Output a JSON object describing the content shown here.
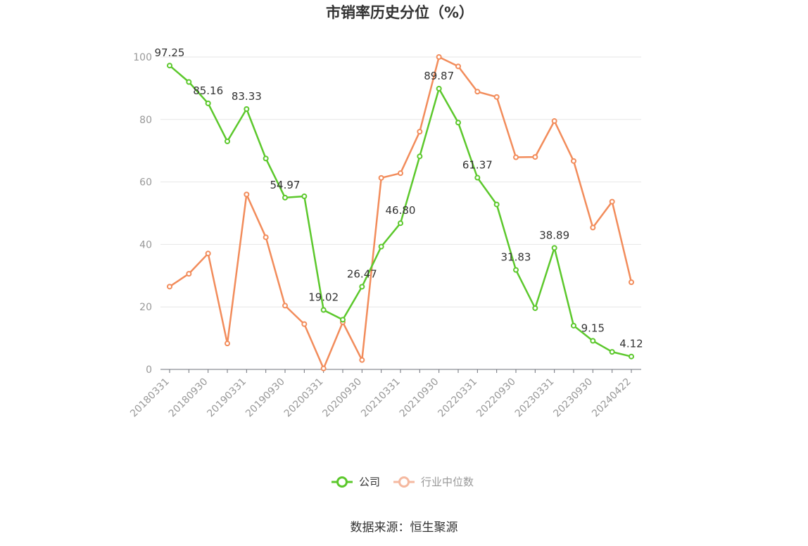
{
  "chart_data": {
    "type": "line",
    "title": "市销率历史分位（%）",
    "xlabel": "",
    "ylabel": "",
    "ylim": [
      0,
      100
    ],
    "yticks": [
      0,
      20,
      40,
      60,
      80,
      100
    ],
    "grid": true,
    "legend_position": "bottom",
    "x_tick_labels": [
      "20180331",
      "20180930",
      "20190331",
      "20190930",
      "20200331",
      "20200930",
      "20210331",
      "20210930",
      "20220331",
      "20220930",
      "20230331",
      "20230930",
      "20240422"
    ],
    "x": [
      "20180331",
      "20180630",
      "20180930",
      "20181231",
      "20190331",
      "20190630",
      "20190930",
      "20191231",
      "20200331",
      "20200630",
      "20200930",
      "20201231",
      "20210331",
      "20210630",
      "20210930",
      "20211231",
      "20220331",
      "20220630",
      "20220930",
      "20221231",
      "20230331",
      "20230630",
      "20230930",
      "20231231",
      "20240422"
    ],
    "series": [
      {
        "name": "公司",
        "color": "#5cc82c",
        "values": [
          97.25,
          92.0,
          85.16,
          73.0,
          83.33,
          67.5,
          54.97,
          55.4,
          19.02,
          15.9,
          26.47,
          39.3,
          46.8,
          68.2,
          89.87,
          79.0,
          61.37,
          52.8,
          31.83,
          19.6,
          38.89,
          14.0,
          9.15,
          5.6,
          4.12
        ],
        "labels": [
          "97.25",
          "",
          "85.16",
          "",
          "83.33",
          "",
          "54.97",
          "",
          "19.02",
          "",
          "26.47",
          "",
          "46.80",
          "",
          "89.87",
          "",
          "61.37",
          "",
          "31.83",
          "",
          "38.89",
          "",
          "9.15",
          "",
          "4.12"
        ]
      },
      {
        "name": "行业中位数",
        "color": "#f28c5b",
        "values": [
          26.5,
          30.6,
          37.1,
          8.3,
          56.0,
          42.3,
          20.4,
          14.5,
          0.3,
          15.1,
          3.0,
          61.3,
          62.8,
          76.1,
          100.0,
          97.0,
          88.9,
          87.2,
          67.9,
          68.0,
          79.5,
          66.7,
          45.4,
          53.7,
          27.9
        ]
      }
    ]
  },
  "legend": {
    "company": "公司",
    "industry": "行业中位数"
  },
  "source": "数据来源：恒生聚源"
}
